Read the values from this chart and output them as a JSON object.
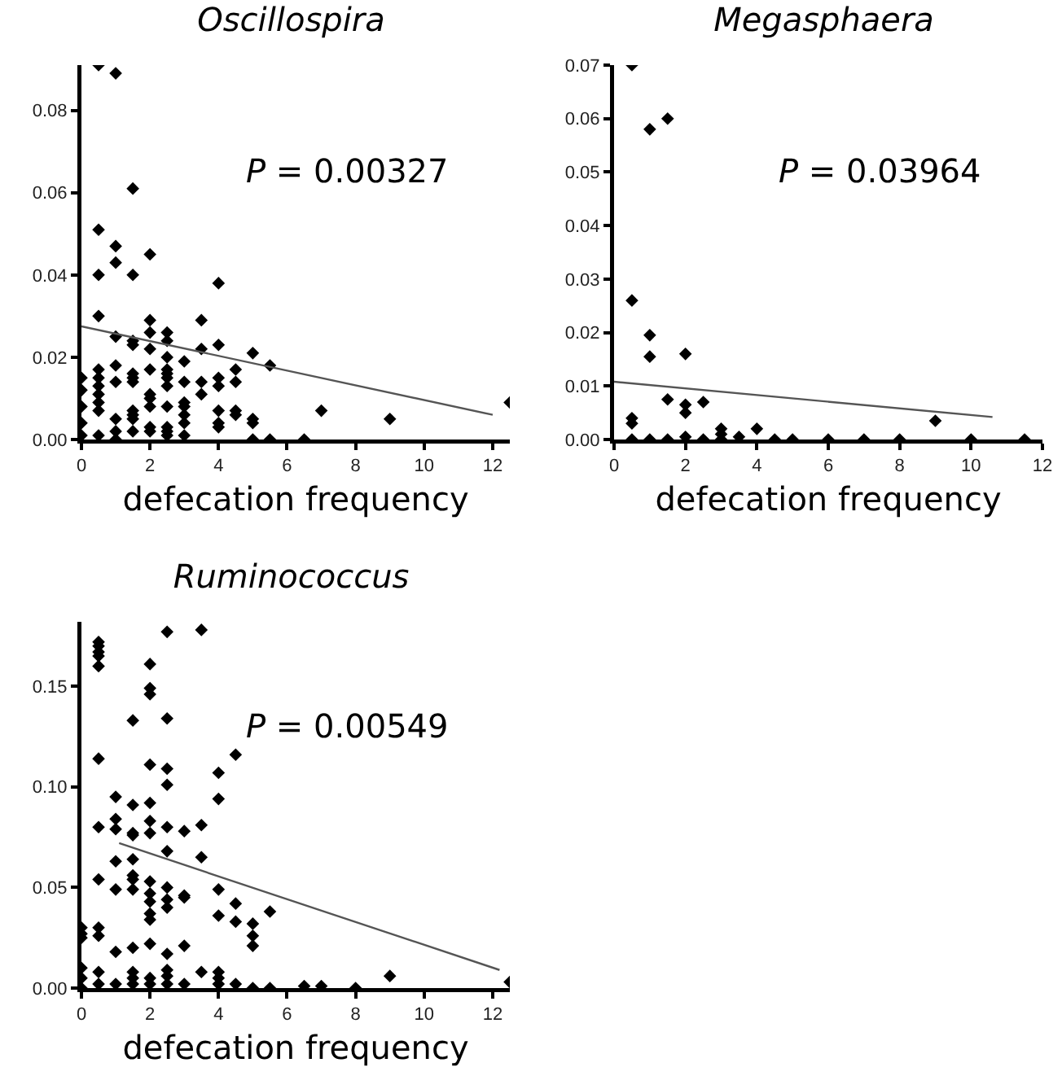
{
  "chart_data": [
    {
      "type": "scatter",
      "title": "Oscillospira",
      "xlabel": "defecation frequency",
      "marker": "diamond",
      "annotations": [
        "P = 0.00327"
      ],
      "xlim": [
        0,
        12.5
      ],
      "xticks": [
        0,
        2,
        4,
        6,
        8,
        10,
        12
      ],
      "ylim": [
        0,
        0.091
      ],
      "yticks": [
        {
          "value": 0,
          "label": "0.00"
        },
        {
          "value": 0.02,
          "label": "0.02"
        },
        {
          "value": 0.04,
          "label": "0.04"
        },
        {
          "value": 0.06,
          "label": "0.06"
        },
        {
          "value": 0.08,
          "label": "0.08"
        }
      ],
      "series": [
        {
          "type": "scatter",
          "color": "#000000",
          "x": [
            0,
            0,
            0,
            0,
            0,
            0.5,
            0.5,
            0.5,
            0.5,
            0.5,
            0.5,
            0.5,
            0.5,
            0.5,
            0.5,
            0.5,
            1,
            1,
            1,
            1,
            1,
            1,
            1,
            1,
            1,
            1.5,
            1.5,
            1.5,
            1.5,
            1.5,
            1.5,
            1.5,
            1.5,
            1.5,
            1.5,
            1.5,
            2,
            2,
            2,
            2,
            2,
            2,
            2,
            2,
            2,
            2,
            2.5,
            2.5,
            2.5,
            2.5,
            2.5,
            2.5,
            2.5,
            2.5,
            2.5,
            2.5,
            2.5,
            3,
            3,
            3,
            3,
            3,
            3,
            3,
            3.5,
            3.5,
            3.5,
            3.5,
            4,
            4,
            4,
            4,
            4,
            4,
            4,
            4.5,
            4.5,
            4.5,
            4.5,
            5,
            5,
            5,
            5,
            5.5,
            5.5,
            6.5,
            7,
            9,
            12.5
          ],
          "values": [
            0.015,
            0.012,
            0.008,
            0.004,
            0.001,
            0.091,
            0.051,
            0.04,
            0.03,
            0.017,
            0.015,
            0.013,
            0.011,
            0.009,
            0.007,
            0.001,
            0.089,
            0.047,
            0.043,
            0.025,
            0.018,
            0.014,
            0.005,
            0.002,
            0,
            0.061,
            0.04,
            0.024,
            0.023,
            0.016,
            0.015,
            0.014,
            0.007,
            0.006,
            0.005,
            0.002,
            0.045,
            0.029,
            0.026,
            0.022,
            0.017,
            0.011,
            0.01,
            0.008,
            0.003,
            0.002,
            0.026,
            0.024,
            0.02,
            0.017,
            0.016,
            0.015,
            0.013,
            0.008,
            0.003,
            0.002,
            0.001,
            0.019,
            0.014,
            0.009,
            0.008,
            0.006,
            0.004,
            0.001,
            0.029,
            0.022,
            0.014,
            0.011,
            0.038,
            0.023,
            0.015,
            0.013,
            0.007,
            0.004,
            0.003,
            0.017,
            0.014,
            0.007,
            0.006,
            0.021,
            0.005,
            0.004,
            0,
            0.018,
            0,
            0,
            0.007,
            0.005,
            0.009
          ]
        },
        {
          "type": "line",
          "color": "#555555",
          "marker": "none",
          "x": [
            0,
            12
          ],
          "values": [
            0.0275,
            0.006
          ]
        }
      ]
    },
    {
      "type": "scatter",
      "title": "Megasphaera",
      "xlabel": "defecation frequency",
      "marker": "diamond",
      "annotations": [
        "P = 0.03964"
      ],
      "xlim": [
        0,
        12
      ],
      "xticks": [
        0,
        2,
        4,
        6,
        8,
        10,
        12
      ],
      "ylim": [
        0,
        0.07
      ],
      "yticks": [
        {
          "value": 0,
          "label": "0.00"
        },
        {
          "value": 0.01,
          "label": "0.01"
        },
        {
          "value": 0.02,
          "label": "0.02"
        },
        {
          "value": 0.03,
          "label": "0.03"
        },
        {
          "value": 0.04,
          "label": "0.04"
        },
        {
          "value": 0.05,
          "label": "0.05"
        },
        {
          "value": 0.06,
          "label": "0.06"
        },
        {
          "value": 0.07,
          "label": "0.07"
        }
      ],
      "series": [
        {
          "type": "scatter",
          "color": "#000000",
          "x": [
            0.5,
            0.5,
            0.5,
            0.5,
            0.5,
            1,
            1,
            1,
            1,
            1.5,
            1.5,
            1.5,
            2,
            2,
            2,
            2,
            2.5,
            2.5,
            3,
            3,
            3,
            3.5,
            4,
            4.5,
            5,
            6,
            7,
            8,
            9,
            10,
            11.5
          ],
          "values": [
            0.07,
            0.026,
            0.004,
            0.003,
            0,
            0.058,
            0.0195,
            0.0155,
            0,
            0.06,
            0.0075,
            0,
            0.016,
            0.0065,
            0.005,
            0.0005,
            0.007,
            0,
            0.002,
            0.001,
            0,
            0.0005,
            0.002,
            0,
            0,
            0,
            0,
            0,
            0.0035,
            0,
            0
          ]
        },
        {
          "type": "line",
          "color": "#555555",
          "marker": "none",
          "x": [
            0,
            10.6
          ],
          "values": [
            0.0108,
            0.0042
          ]
        }
      ]
    },
    {
      "type": "scatter",
      "title": "Ruminococcus",
      "xlabel": "defecation frequency",
      "marker": "diamond",
      "annotations": [
        "P = 0.00549"
      ],
      "xlim": [
        0,
        12.5
      ],
      "xticks": [
        0,
        2,
        4,
        6,
        8,
        10,
        12
      ],
      "ylim": [
        0,
        0.182
      ],
      "yticks": [
        {
          "value": 0,
          "label": "0.00"
        },
        {
          "value": 0.05,
          "label": "0.05"
        },
        {
          "value": 0.1,
          "label": "0.10"
        },
        {
          "value": 0.15,
          "label": "0.15"
        }
      ],
      "series": [
        {
          "type": "scatter",
          "color": "#000000",
          "x": [
            0,
            0,
            0,
            0,
            0,
            0,
            0.5,
            0.5,
            0.5,
            0.5,
            0.5,
            0.5,
            0.5,
            0.5,
            0.5,
            0.5,
            0.5,
            0.5,
            1,
            1,
            1,
            1,
            1,
            1,
            1,
            1.5,
            1.5,
            1.5,
            1.5,
            1.5,
            1.5,
            1.5,
            1.5,
            1.5,
            1.5,
            1.5,
            1.5,
            2,
            2,
            2,
            2,
            2,
            2,
            2,
            2,
            2,
            2,
            2,
            2,
            2,
            2,
            2,
            2.5,
            2.5,
            2.5,
            2.5,
            2.5,
            2.5,
            2.5,
            2.5,
            2.5,
            2.5,
            2.5,
            2.5,
            2.5,
            3,
            3,
            3,
            3,
            3,
            3.5,
            3.5,
            3.5,
            3.5,
            4,
            4,
            4,
            4,
            4,
            4,
            4,
            4.5,
            4.5,
            4.5,
            4.5,
            5,
            5,
            5,
            5,
            5.5,
            5.5,
            6.5,
            7,
            8,
            9,
            12.5
          ],
          "values": [
            0.03,
            0.027,
            0.025,
            0.01,
            0.005,
            0,
            0.172,
            0.17,
            0.167,
            0.165,
            0.16,
            0.114,
            0.08,
            0.054,
            0.03,
            0.026,
            0.008,
            0.002,
            0.095,
            0.084,
            0.079,
            0.063,
            0.049,
            0.018,
            0.002,
            0.133,
            0.091,
            0.077,
            0.076,
            0.064,
            0.056,
            0.054,
            0.049,
            0.02,
            0.008,
            0.005,
            0.002,
            0.161,
            0.149,
            0.146,
            0.111,
            0.092,
            0.083,
            0.077,
            0.053,
            0.047,
            0.043,
            0.037,
            0.034,
            0.022,
            0.005,
            0.002,
            0.177,
            0.134,
            0.109,
            0.101,
            0.08,
            0.068,
            0.05,
            0.044,
            0.04,
            0.017,
            0.009,
            0.006,
            0.002,
            0.078,
            0.046,
            0.045,
            0.021,
            0.002,
            0.178,
            0.081,
            0.065,
            0.008,
            0.107,
            0.094,
            0.049,
            0.036,
            0.008,
            0.005,
            0.002,
            0.116,
            0.042,
            0.033,
            0.002,
            0.032,
            0.026,
            0.021,
            0,
            0.038,
            0,
            0.001,
            0.001,
            0,
            0.006,
            0.003
          ]
        },
        {
          "type": "line",
          "color": "#555555",
          "marker": "none",
          "x": [
            1.1,
            12.2
          ],
          "values": [
            0.072,
            0.009
          ]
        }
      ]
    }
  ]
}
